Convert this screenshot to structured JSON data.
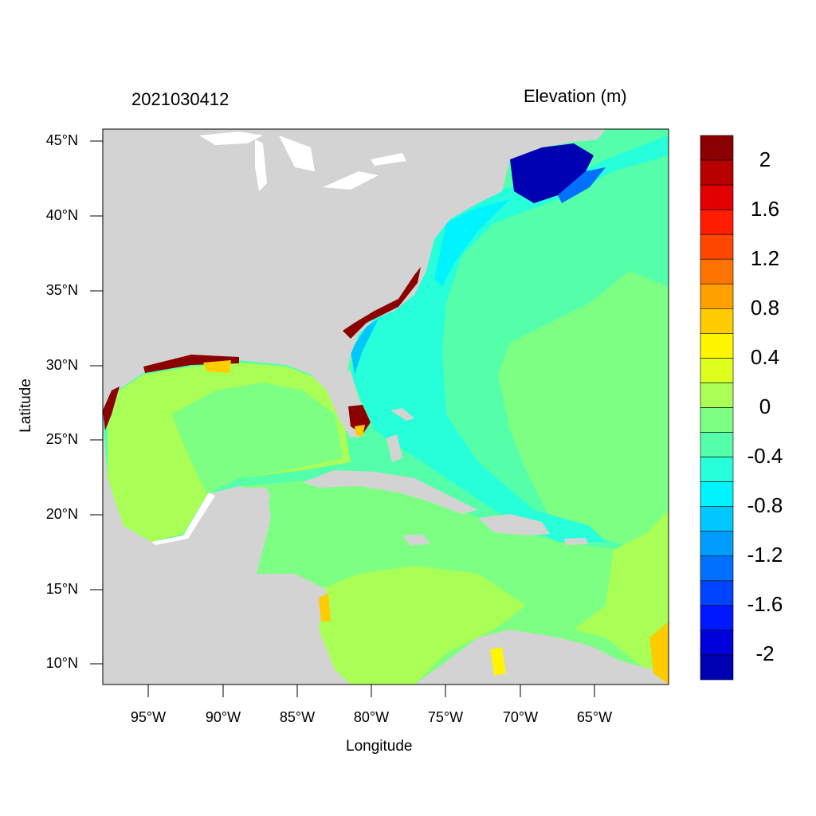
{
  "title_left": "2021030412",
  "title_right": "Elevation (m)",
  "xlabel": "Longitude",
  "ylabel": "Latitude",
  "lat_ticks": [
    "45°N",
    "40°N",
    "35°N",
    "30°N",
    "25°N",
    "20°N",
    "15°N",
    "10°N"
  ],
  "lon_ticks": [
    "95°W",
    "90°W",
    "85°W",
    "80°W",
    "75°W",
    "70°W",
    "65°W"
  ],
  "colorbar_labels": [
    "2",
    "1.6",
    "1.2",
    "0.8",
    "0.4",
    "0",
    "-0.4",
    "-0.8",
    "-1.2",
    "-1.6",
    "-2"
  ],
  "colorbar_colors": [
    "#8b0000",
    "#b70000",
    "#e30000",
    "#ff1c00",
    "#ff4600",
    "#ff7300",
    "#ff9f00",
    "#ffcc00",
    "#fff500",
    "#dcff1e",
    "#a9ff55",
    "#7dff84",
    "#55ffaa",
    "#26ffd9",
    "#00f4ff",
    "#00c8ff",
    "#009dff",
    "#0070ff",
    "#0044ff",
    "#0018ff",
    "#0000da",
    "#0000b3"
  ],
  "colors": {
    "land": "#d3d3d3",
    "lakes": "#ffffff",
    "gulf": "#a9ff55",
    "caribbean": "#7dff84",
    "atlantic_mid": "#7dff84",
    "atlantic_near": "#55ffaa",
    "shelf": "#26ffd9",
    "coast": "#00f4ff",
    "low": "#0000b3",
    "high": "#8b0000"
  }
}
